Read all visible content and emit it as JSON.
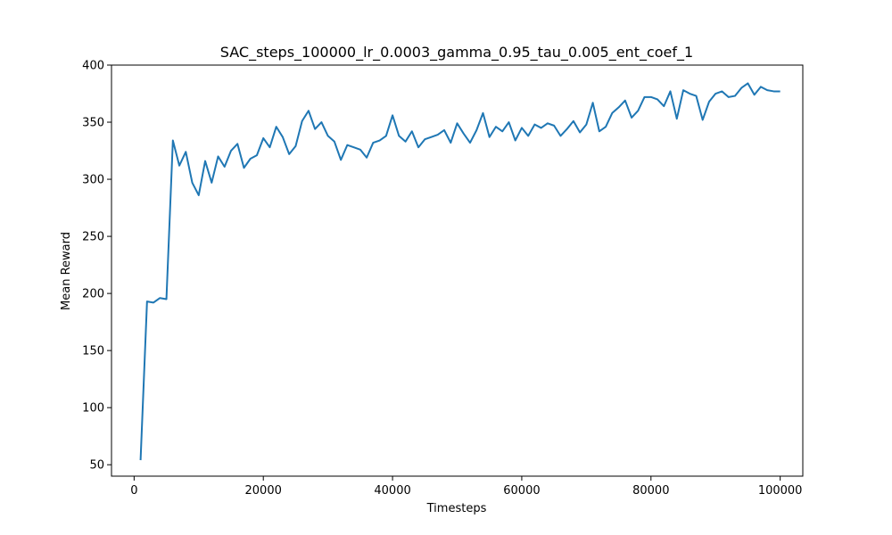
{
  "chart_data": {
    "type": "line",
    "title": "SAC_steps_100000_lr_0.0003_gamma_0.95_tau_0.005_ent_coef_1",
    "xlabel": "Timesteps",
    "ylabel": "Mean Reward",
    "xlim": [
      -3500,
      103500
    ],
    "ylim": [
      40,
      400
    ],
    "xticks": [
      0,
      20000,
      40000,
      60000,
      80000,
      100000
    ],
    "xtick_labels": [
      "0",
      "20000",
      "40000",
      "60000",
      "80000",
      "100000"
    ],
    "yticks": [
      50,
      100,
      150,
      200,
      250,
      300,
      350,
      400
    ],
    "ytick_labels": [
      "50",
      "100",
      "150",
      "200",
      "250",
      "300",
      "350",
      "400"
    ],
    "grid": false,
    "series": [
      {
        "color": "#1f77b4",
        "x": [
          1000,
          2000,
          3000,
          4000,
          5000,
          6000,
          7000,
          8000,
          9000,
          10000,
          11000,
          12000,
          13000,
          14000,
          15000,
          16000,
          17000,
          18000,
          19000,
          20000,
          21000,
          22000,
          23000,
          24000,
          25000,
          26000,
          27000,
          28000,
          29000,
          30000,
          31000,
          32000,
          33000,
          34000,
          35000,
          36000,
          37000,
          38000,
          39000,
          40000,
          41000,
          42000,
          43000,
          44000,
          45000,
          46000,
          47000,
          48000,
          49000,
          50000,
          51000,
          52000,
          53000,
          54000,
          55000,
          56000,
          57000,
          58000,
          59000,
          60000,
          61000,
          62000,
          63000,
          64000,
          65000,
          66000,
          67000,
          68000,
          69000,
          70000,
          71000,
          72000,
          73000,
          74000,
          75000,
          76000,
          77000,
          78000,
          79000,
          80000,
          81000,
          82000,
          83000,
          84000,
          85000,
          86000,
          87000,
          88000,
          89000,
          90000,
          91000,
          92000,
          93000,
          94000,
          95000,
          96000,
          97000,
          98000,
          99000,
          100000
        ],
        "y": [
          54,
          193,
          192,
          196,
          195,
          334,
          312,
          324,
          297,
          286,
          316,
          297,
          320,
          311,
          325,
          331,
          310,
          318,
          321,
          336,
          328,
          346,
          337,
          322,
          329,
          351,
          360,
          344,
          350,
          338,
          333,
          317,
          330,
          328,
          326,
          319,
          332,
          334,
          338,
          356,
          338,
          333,
          342,
          328,
          335,
          337,
          339,
          343,
          332,
          349,
          340,
          332,
          343,
          358,
          337,
          346,
          342,
          350,
          334,
          345,
          338,
          348,
          345,
          349,
          347,
          338,
          344,
          351,
          341,
          348,
          367,
          342,
          346,
          358,
          363,
          369,
          354,
          360,
          372,
          372,
          370,
          364,
          377,
          353,
          378,
          375,
          373,
          352,
          368,
          375,
          377,
          372,
          373,
          380,
          384,
          374,
          381,
          378,
          377,
          377
        ]
      }
    ]
  }
}
